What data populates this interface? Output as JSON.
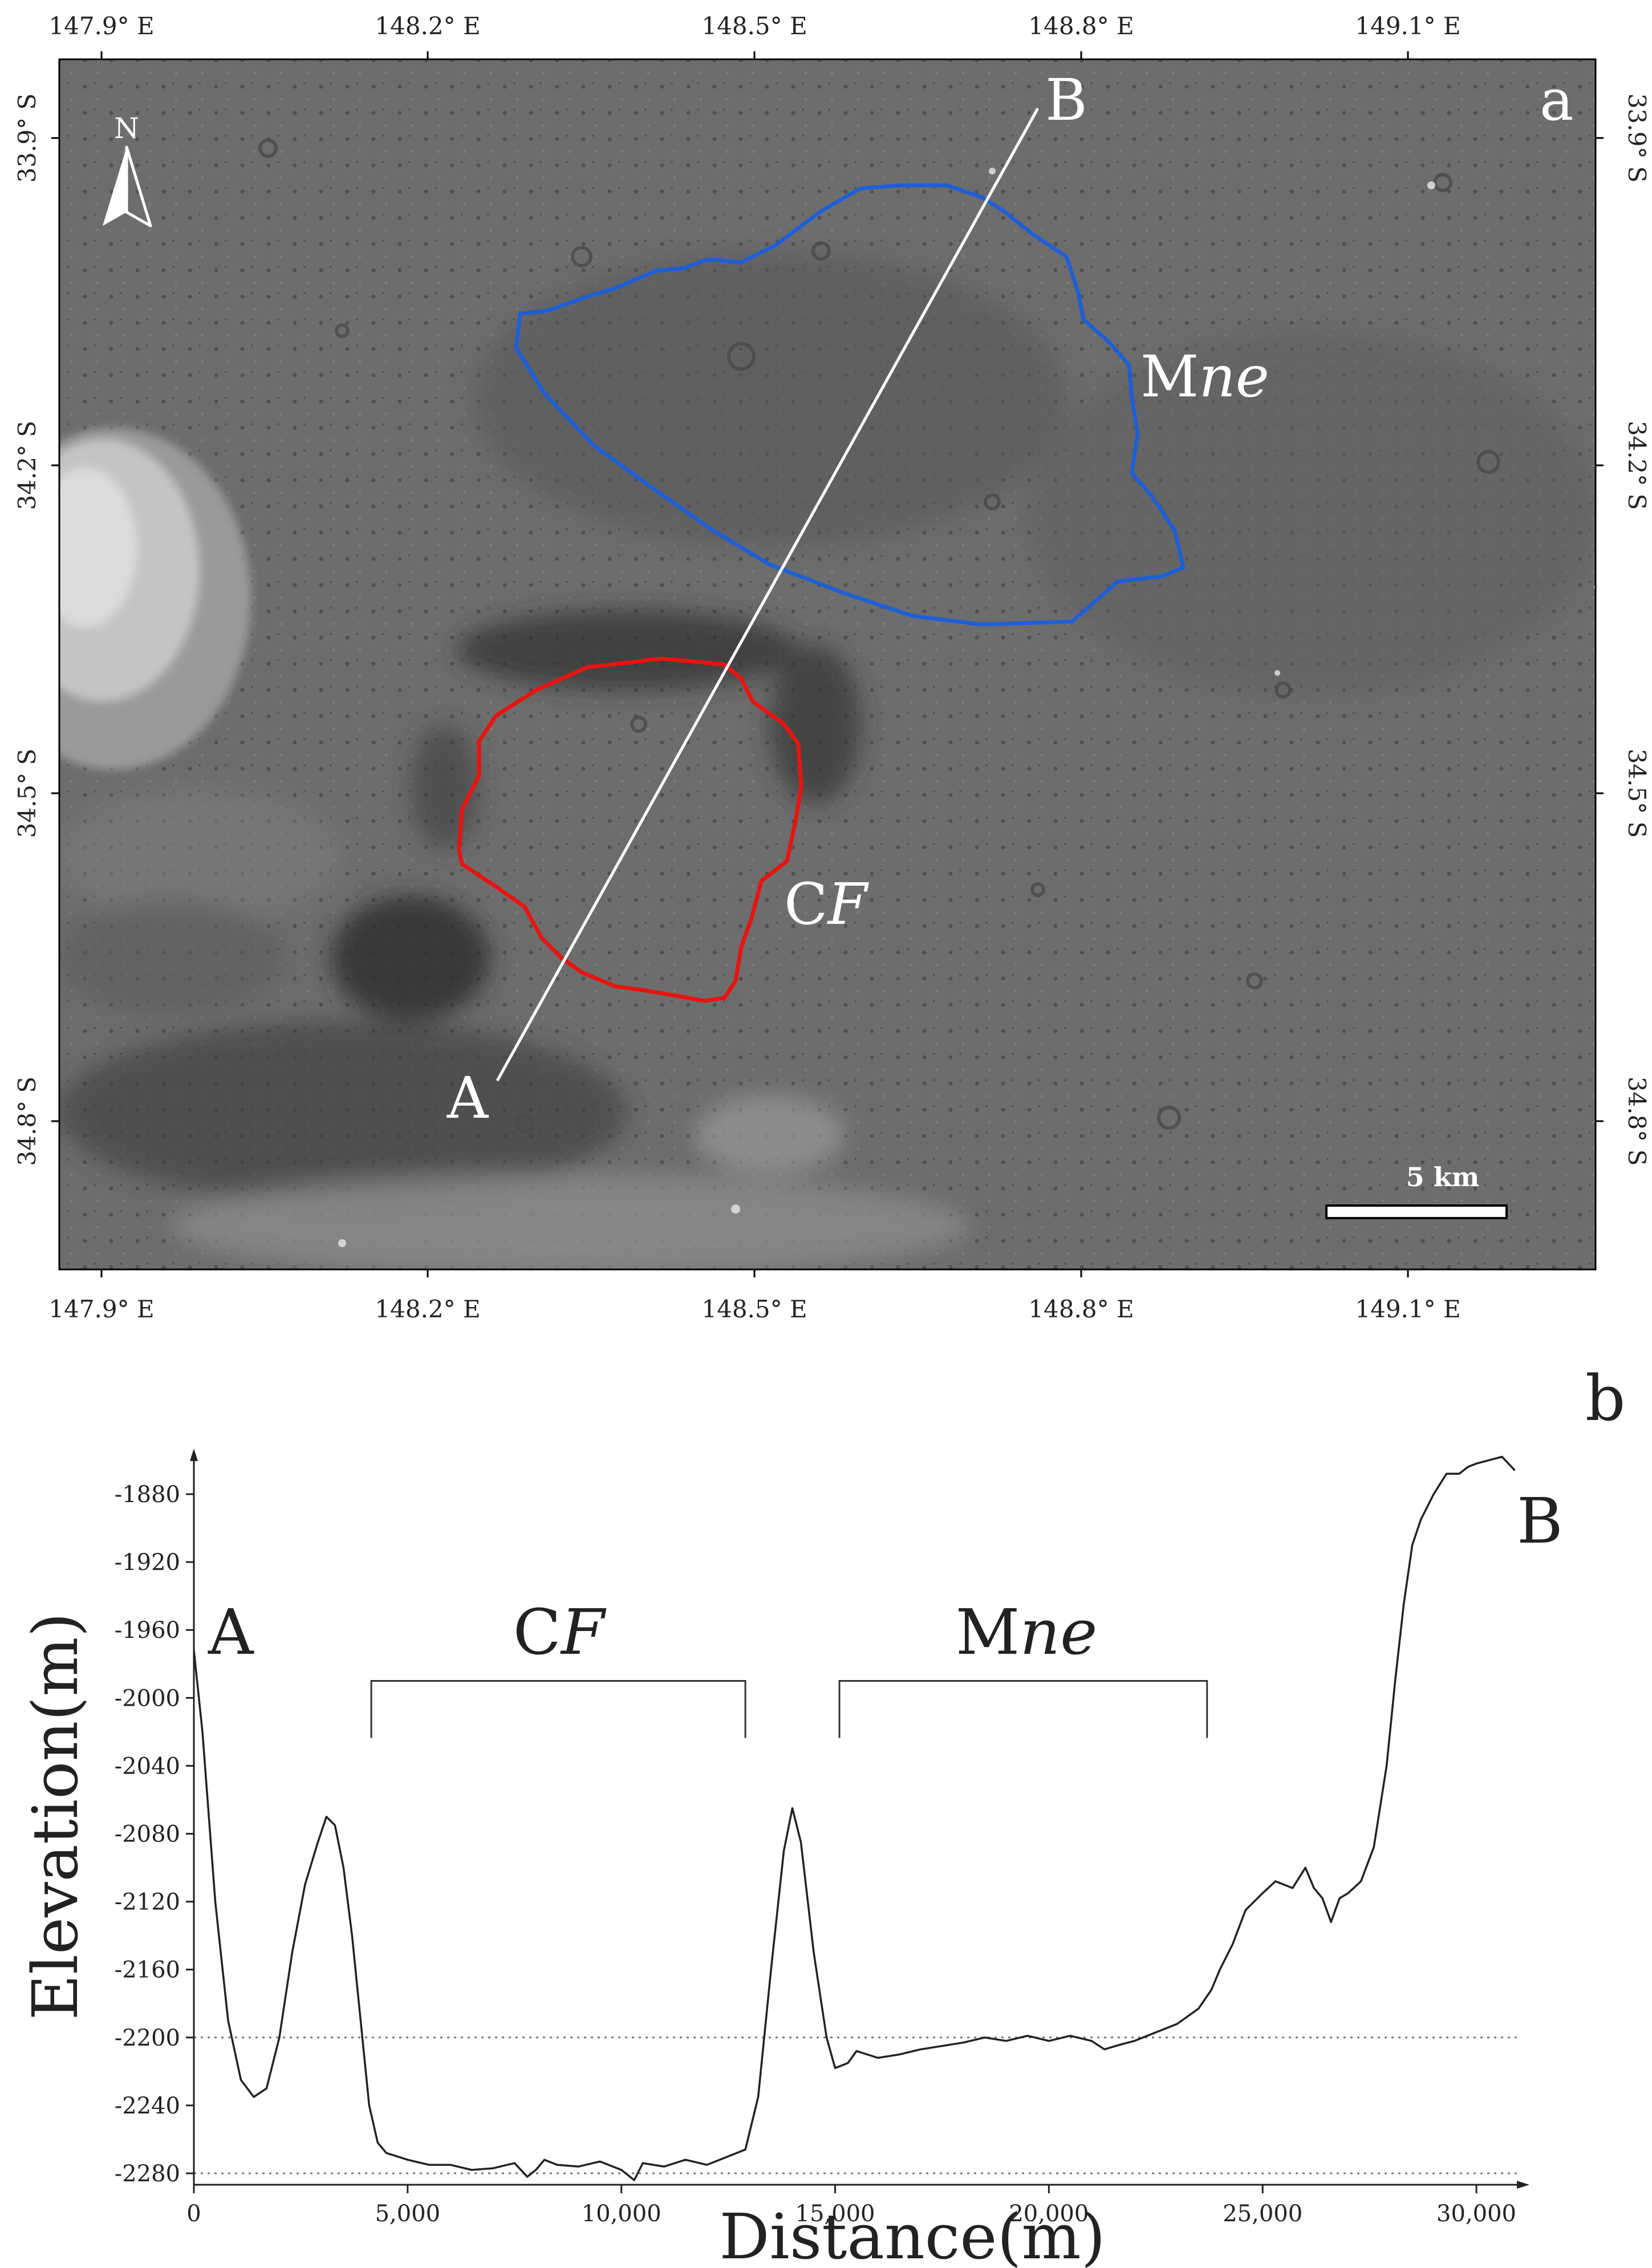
{
  "panel_a": {
    "label": "a",
    "top_lon_ticks": [
      "147.9° E",
      "148.2° E",
      "148.5° E",
      "148.8° E",
      "149.1° E"
    ],
    "bottom_lon_ticks": [
      "147.9° E",
      "148.2° E",
      "148.5° E",
      "148.8° E",
      "149.1° E"
    ],
    "left_lat_ticks": [
      "33.9° S",
      "34.2° S",
      "34.5° S",
      "34.8° S"
    ],
    "right_lat_ticks": [
      "33.9° S",
      "34.2° S",
      "34.5° S",
      "34.8° S"
    ],
    "north_label": "N",
    "scale_bar_label": "5 km",
    "profile_start_label": "A",
    "profile_end_label": "B",
    "unit_labels": [
      {
        "main": "M",
        "italic": "ne",
        "color": "#ffffff",
        "outline": "#1f5fd6"
      },
      {
        "main": "C",
        "italic": "F",
        "color": "#ffffff",
        "outline": "#e8140f"
      }
    ]
  },
  "panel_b": {
    "label": "b",
    "profile_start_label": "A",
    "profile_end_label": "B",
    "bracket_labels": [
      {
        "main": "C",
        "italic": "F"
      },
      {
        "main": "M",
        "italic": "ne"
      }
    ]
  },
  "chart_data": {
    "type": "line",
    "xlabel": "Distance(m)",
    "ylabel": "Elevation(m)",
    "xlim": [
      0,
      31000
    ],
    "ylim": [
      -2290,
      -1850
    ],
    "x_ticks": [
      0,
      5000,
      10000,
      15000,
      20000,
      25000,
      30000
    ],
    "x_tick_labels": [
      "0",
      "5,000",
      "10,000",
      "15,000",
      "20,000",
      "25,000",
      "30,000"
    ],
    "y_ticks": [
      -1880,
      -1920,
      -1960,
      -2000,
      -2040,
      -2080,
      -2120,
      -2160,
      -2200,
      -2240,
      -2280
    ],
    "y_tick_labels": [
      "-1880",
      "-1920",
      "-1960",
      "-2000",
      "-2040",
      "-2080",
      "-2120",
      "-2160",
      "-2200",
      "-2240",
      "-2280"
    ],
    "reference_lines": [
      -2200,
      -2280
    ],
    "brackets": [
      {
        "x_start": 4150,
        "x_end": 12900,
        "y": -1990
      },
      {
        "x_start": 15100,
        "x_end": 23700,
        "y": -1990
      }
    ],
    "series": [
      {
        "x": [
          0,
          200,
          500,
          800,
          1100,
          1400,
          1700,
          2000,
          2300,
          2600,
          2900,
          3100,
          3300,
          3500,
          3700,
          3900,
          4100,
          4300,
          4500,
          5000,
          5500,
          6000,
          6500,
          7000,
          7500,
          7800,
          8000,
          8200,
          8500,
          9000,
          9500,
          10000,
          10300,
          10500,
          11000,
          11500,
          12000,
          12500,
          12900,
          13200,
          13500,
          13800,
          14000,
          14200,
          14500,
          14800,
          15000,
          15300,
          15500,
          16000,
          16500,
          17000,
          17500,
          18000,
          18500,
          19000,
          19500,
          20000,
          20500,
          21000,
          21300,
          21700,
          22000,
          22500,
          23000,
          23500,
          23800,
          24000,
          24300,
          24600,
          25000,
          25300,
          25700,
          26000,
          26200,
          26400,
          26600,
          26800,
          27000,
          27300,
          27600,
          27900,
          28100,
          28300,
          28500,
          28700,
          29000,
          29300,
          29600,
          29800,
          30000,
          30300,
          30600,
          30900
        ],
        "y": [
          -1972,
          -2020,
          -2120,
          -2190,
          -2225,
          -2235,
          -2230,
          -2200,
          -2150,
          -2110,
          -2085,
          -2070,
          -2075,
          -2100,
          -2140,
          -2190,
          -2240,
          -2262,
          -2268,
          -2272,
          -2275,
          -2275,
          -2278,
          -2277,
          -2274,
          -2282,
          -2278,
          -2272,
          -2275,
          -2276,
          -2273,
          -2278,
          -2284,
          -2274,
          -2276,
          -2272,
          -2275,
          -2270,
          -2266,
          -2235,
          -2160,
          -2090,
          -2065,
          -2085,
          -2150,
          -2200,
          -2218,
          -2215,
          -2208,
          -2212,
          -2210,
          -2207,
          -2205,
          -2203,
          -2200,
          -2202,
          -2199,
          -2202,
          -2199,
          -2202,
          -2207,
          -2204,
          -2202,
          -2197,
          -2192,
          -2183,
          -2172,
          -2160,
          -2145,
          -2125,
          -2115,
          -2108,
          -2112,
          -2100,
          -2112,
          -2118,
          -2132,
          -2118,
          -2115,
          -2108,
          -2088,
          -2040,
          -1990,
          -1945,
          -1910,
          -1895,
          -1880,
          -1868,
          -1868,
          -1864,
          -1862,
          -1860,
          -1858,
          -1866
        ]
      }
    ]
  }
}
